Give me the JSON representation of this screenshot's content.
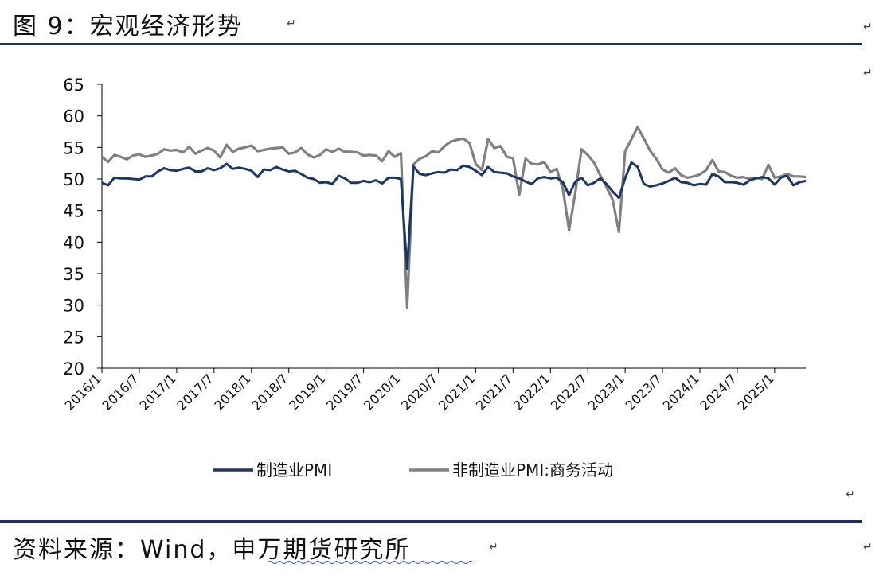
{
  "header": {
    "title": "图 9：宏观经济形势"
  },
  "footer": {
    "source": "资料来源：Wind，申万期货研究所"
  },
  "para_mark": "↵",
  "chart_data": {
    "type": "line",
    "ylim": [
      20,
      65
    ],
    "yticks": [
      20,
      25,
      30,
      35,
      40,
      45,
      50,
      55,
      60,
      65
    ],
    "xticks": [
      "2016/1",
      "2016/7",
      "2017/1",
      "2017/7",
      "2018/1",
      "2018/7",
      "2019/1",
      "2019/7",
      "2020/1",
      "2020/7",
      "2021/1",
      "2021/7",
      "2022/1",
      "2022/7",
      "2023/1",
      "2023/7",
      "2024/1",
      "2024/7",
      "2025/1"
    ],
    "start": "2016/1",
    "end": "2025/6",
    "legend": "bottom",
    "series": [
      {
        "name": "制造业PMI",
        "color": "#1c3763",
        "values": [
          49.4,
          49.0,
          50.2,
          50.1,
          50.1,
          50.0,
          49.9,
          50.4,
          50.4,
          51.2,
          51.7,
          51.4,
          51.3,
          51.6,
          51.8,
          51.2,
          51.2,
          51.7,
          51.4,
          51.7,
          52.4,
          51.6,
          51.8,
          51.6,
          51.3,
          50.3,
          51.5,
          51.4,
          51.9,
          51.5,
          51.2,
          51.3,
          50.8,
          50.2,
          50.0,
          49.4,
          49.5,
          49.2,
          50.5,
          50.1,
          49.4,
          49.4,
          49.7,
          49.5,
          49.8,
          49.3,
          50.2,
          50.2,
          50.0,
          35.7,
          52.0,
          50.8,
          50.6,
          50.9,
          51.1,
          51.0,
          51.5,
          51.4,
          52.1,
          51.9,
          51.3,
          50.6,
          51.9,
          51.1,
          51.0,
          50.9,
          50.4,
          50.1,
          49.6,
          49.2,
          50.1,
          50.3,
          50.1,
          50.2,
          49.5,
          47.4,
          49.6,
          50.2,
          49.0,
          49.4,
          50.1,
          49.2,
          48.0,
          47.0,
          50.1,
          52.6,
          51.9,
          49.2,
          48.8,
          49.0,
          49.3,
          49.7,
          50.2,
          49.5,
          49.4,
          49.0,
          49.2,
          49.1,
          50.8,
          50.4,
          49.5,
          49.5,
          49.4,
          49.1,
          49.8,
          50.1,
          50.3,
          50.1,
          49.1,
          50.2,
          50.5,
          49.0,
          49.5,
          49.7
        ]
      },
      {
        "name": "非制造业PMI:商务活动",
        "color": "#808080",
        "values": [
          53.5,
          52.7,
          53.8,
          53.5,
          53.1,
          53.7,
          53.9,
          53.5,
          53.7,
          54.0,
          54.7,
          54.5,
          54.6,
          54.2,
          55.1,
          54.0,
          54.5,
          54.9,
          54.5,
          53.4,
          55.4,
          54.3,
          54.8,
          55.0,
          55.3,
          54.4,
          54.6,
          54.8,
          54.9,
          55.0,
          54.0,
          54.2,
          54.9,
          53.9,
          53.4,
          53.8,
          54.7,
          54.3,
          54.8,
          54.3,
          54.3,
          54.2,
          53.7,
          53.8,
          53.7,
          52.8,
          54.4,
          53.5,
          54.1,
          29.6,
          52.3,
          53.2,
          53.6,
          54.4,
          54.2,
          55.2,
          55.9,
          56.2,
          56.4,
          55.7,
          52.4,
          51.4,
          56.3,
          54.9,
          55.2,
          53.5,
          53.3,
          47.5,
          53.2,
          52.4,
          52.3,
          52.7,
          51.1,
          51.6,
          48.4,
          41.9,
          47.8,
          54.7,
          53.8,
          52.6,
          50.6,
          48.7,
          46.7,
          41.6,
          54.4,
          56.3,
          58.2,
          56.4,
          54.5,
          53.2,
          51.5,
          51.0,
          51.7,
          50.6,
          50.2,
          50.4,
          50.7,
          51.4,
          53.0,
          51.2,
          51.1,
          50.5,
          50.2,
          50.3,
          50.0,
          50.2,
          50.0,
          52.2,
          50.2,
          50.4,
          50.8,
          50.4,
          50.4,
          50.3
        ]
      }
    ]
  }
}
